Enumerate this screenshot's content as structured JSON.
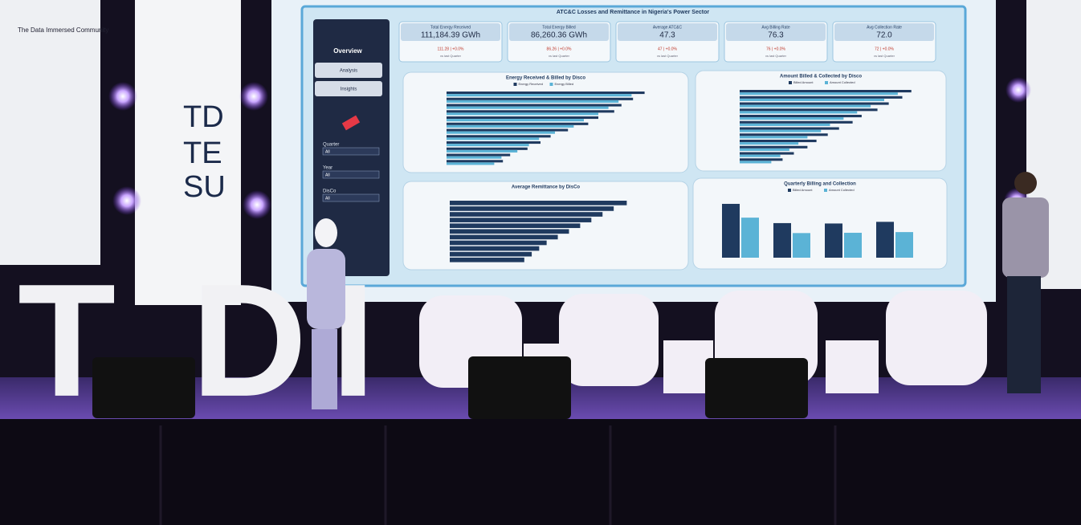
{
  "logo": "The Data Immersed Community",
  "banner": [
    "TD",
    "TE",
    "SU"
  ],
  "stage_letters": [
    "T",
    "D",
    "I"
  ],
  "dashboard": {
    "title": "ATC&C Losses and Remittance in Nigeria's Power Sector",
    "nav": {
      "heading": "Overview",
      "buttons": [
        "Analysis",
        "Insights"
      ]
    },
    "filters": [
      {
        "label": "Quarter",
        "value": "All"
      },
      {
        "label": "Year",
        "value": "All"
      },
      {
        "label": "DisCo",
        "value": "All"
      }
    ],
    "kpis": [
      {
        "title": "Total Energy Received",
        "value": "111,184.39 GWh",
        "change": "111.28 | +0.0%",
        "note": "vs last Quarter"
      },
      {
        "title": "Total Energy Billed",
        "value": "86,260.36 GWh",
        "change": "86.26 | +0.0%",
        "note": "vs last Quarter"
      },
      {
        "title": "Average ATC&C",
        "value": "47.3",
        "change": "47 | +0.0%",
        "note": "vs last Quarter"
      },
      {
        "title": "Avg Billing Rate",
        "value": "76.3",
        "change": "76 | +0.0%",
        "note": "vs last Quarter"
      },
      {
        "title": "Avg Collection Rate",
        "value": "72.0",
        "change": "72 | +0.0%",
        "note": "vs last Quarter"
      }
    ]
  },
  "chart_data": [
    {
      "type": "hbar",
      "title": "Energy Received & Billed by Disco",
      "xlim": [
        0,
        15
      ],
      "series": [
        {
          "name": "Energy Received",
          "color": "#1f3a5f",
          "values": [
            13.7,
            12.9,
            12.1,
            11.6,
            10.5,
            9.8,
            8.4,
            7.2,
            6.5,
            5.6,
            4.4,
            3.9
          ]
        },
        {
          "name": "Energy Billed",
          "color": "#5bb3d6",
          "values": [
            12.8,
            11.9,
            11.2,
            10.5,
            9.5,
            8.8,
            7.5,
            6.4,
            5.7,
            4.9,
            3.8,
            3.3
          ]
        }
      ]
    },
    {
      "type": "hbar",
      "title": "Amount Billed & Collected by Disco",
      "xlim": [
        0,
        400
      ],
      "series": [
        {
          "name": "Billed Amount",
          "color": "#1f3a5f",
          "values": [
            380,
            360,
            330,
            305,
            270,
            250,
            220,
            195,
            170,
            150,
            120,
            95
          ]
        },
        {
          "name": "Amount Collected",
          "color": "#5bb3d6",
          "values": [
            350,
            320,
            290,
            260,
            230,
            200,
            180,
            150,
            130,
            110,
            90,
            70
          ]
        }
      ]
    },
    {
      "type": "hbar",
      "title": "Average Remittance by DisCo",
      "xlim": [
        0,
        100
      ],
      "series": [
        {
          "name": "Remittance",
          "color": "#1f3a5f",
          "values": [
            95,
            88,
            82,
            76,
            70,
            64,
            58,
            52,
            48,
            44,
            40
          ]
        }
      ]
    },
    {
      "type": "vbar",
      "title": "Quarterly Billing and Collection",
      "ylim": [
        0,
        600
      ],
      "series": [
        {
          "name": "Billed Amount",
          "color": "#1f3a5f",
          "values": [
            551,
            354,
            350,
            367
          ]
        },
        {
          "name": "Amount Collected",
          "color": "#5bb3d6",
          "values": [
            410,
            252,
            255,
            262
          ]
        }
      ]
    }
  ]
}
